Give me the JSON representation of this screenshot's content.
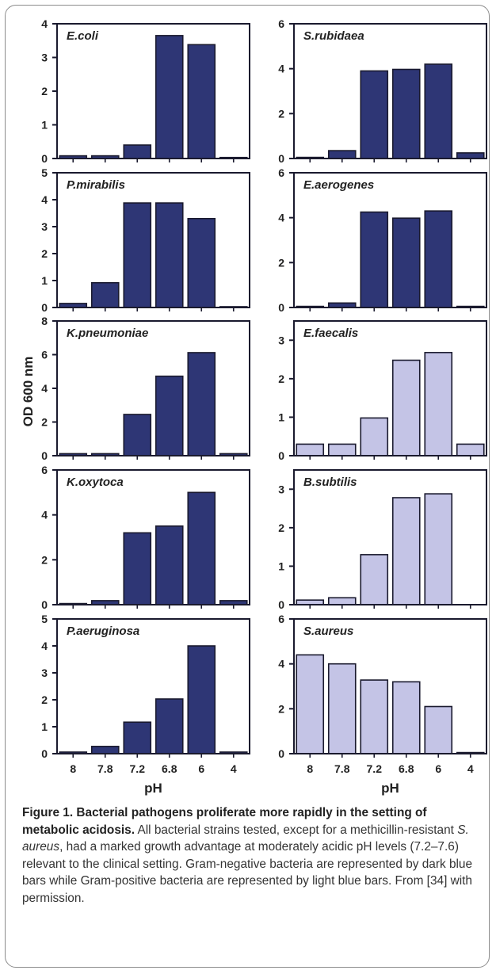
{
  "colors": {
    "gram_negative": "#2e3675",
    "gram_positive": "#c4c4e6",
    "axis": "#1a1a2e"
  },
  "figure": {
    "ylabel": "OD 600 nm",
    "xlabel_left": "pH",
    "xlabel_right": "pH",
    "caption_title": "Figure 1. Bacterial pathogens proliferate more rapidly in the setting of metabolic acidosis.",
    "caption_part1": "All bacterial strains tested, except for a methicillin-resistant",
    "caption_italic": "S. aureus",
    "caption_part2": ", had a marked growth advantage at moderately acidic pH levels (7.2–7.6) relevant to the clinical setting. Gram-negative bacteria are represented by dark blue bars while Gram-positive bacteria are represented by light blue bars. From [34] with permission."
  },
  "chart_data": [
    {
      "type": "bar",
      "title": "E.coli",
      "gram": "negative",
      "categories": [
        "8",
        "7.8",
        "7.2",
        "6.8",
        "6",
        "4"
      ],
      "values": [
        0.08,
        0.08,
        0.4,
        3.65,
        3.38,
        0.03
      ],
      "ylim": [
        0,
        4
      ],
      "yticks": [
        0,
        1,
        2,
        3,
        4
      ]
    },
    {
      "type": "bar",
      "title": "S.rubidaea",
      "gram": "negative",
      "categories": [
        "8",
        "7.8",
        "7.2",
        "6.8",
        "6",
        "4"
      ],
      "values": [
        0.05,
        0.35,
        3.9,
        3.97,
        4.2,
        0.25
      ],
      "ylim": [
        0,
        6
      ],
      "yticks": [
        0,
        2,
        4,
        6
      ]
    },
    {
      "type": "bar",
      "title": "P.mirabilis",
      "gram": "negative",
      "categories": [
        "8",
        "7.8",
        "7.2",
        "6.8",
        "6",
        "4"
      ],
      "values": [
        0.15,
        0.92,
        3.88,
        3.88,
        3.3,
        0.03
      ],
      "ylim": [
        0,
        5
      ],
      "yticks": [
        0,
        1,
        2,
        3,
        4,
        5
      ]
    },
    {
      "type": "bar",
      "title": "E.aerogenes",
      "gram": "negative",
      "categories": [
        "8",
        "7.8",
        "7.2",
        "6.8",
        "6",
        "4"
      ],
      "values": [
        0.05,
        0.2,
        4.25,
        3.98,
        4.3,
        0.05
      ],
      "ylim": [
        0,
        6
      ],
      "yticks": [
        0,
        2,
        4,
        6
      ]
    },
    {
      "type": "bar",
      "title": "K.pneumoniae",
      "gram": "negative",
      "categories": [
        "8",
        "7.8",
        "7.2",
        "6.8",
        "6",
        "4"
      ],
      "values": [
        0.12,
        0.12,
        2.45,
        4.72,
        6.12,
        0.12
      ],
      "ylim": [
        0,
        8
      ],
      "yticks": [
        0,
        2,
        4,
        6,
        8
      ]
    },
    {
      "type": "bar",
      "title": "E.faecalis",
      "gram": "positive",
      "categories": [
        "8",
        "7.8",
        "7.2",
        "6.8",
        "6",
        "4"
      ],
      "values": [
        0.3,
        0.3,
        0.98,
        2.48,
        2.68,
        0.3
      ],
      "ylim": [
        0,
        3.5
      ],
      "yticks": [
        0,
        1,
        2,
        3
      ]
    },
    {
      "type": "bar",
      "title": "K.oxytoca",
      "gram": "negative",
      "categories": [
        "8",
        "7.8",
        "7.2",
        "6.8",
        "6",
        "4"
      ],
      "values": [
        0.05,
        0.18,
        3.2,
        3.5,
        5.0,
        0.18
      ],
      "ylim": [
        0,
        6
      ],
      "yticks": [
        0,
        2,
        4,
        6
      ]
    },
    {
      "type": "bar",
      "title": "B.subtilis",
      "gram": "positive",
      "categories": [
        "8",
        "7.8",
        "7.2",
        "6.8",
        "6",
        "4"
      ],
      "values": [
        0.12,
        0.18,
        1.3,
        2.78,
        2.88,
        0.0
      ],
      "ylim": [
        0,
        3.5
      ],
      "yticks": [
        0,
        1,
        2,
        3
      ]
    },
    {
      "type": "bar",
      "title": "P.aeruginosa",
      "gram": "negative",
      "categories": [
        "8",
        "7.8",
        "7.2",
        "6.8",
        "6",
        "4"
      ],
      "values": [
        0.06,
        0.27,
        1.17,
        2.03,
        4.0,
        0.06
      ],
      "ylim": [
        0,
        5
      ],
      "yticks": [
        0,
        1,
        2,
        3,
        4,
        5
      ]
    },
    {
      "type": "bar",
      "title": "S.aureus",
      "gram": "positive",
      "categories": [
        "8",
        "7.8",
        "7.2",
        "6.8",
        "6",
        "4"
      ],
      "values": [
        4.4,
        4.0,
        3.28,
        3.2,
        2.1,
        0.05
      ],
      "ylim": [
        0,
        6
      ],
      "yticks": [
        0,
        2,
        4,
        6
      ]
    }
  ]
}
